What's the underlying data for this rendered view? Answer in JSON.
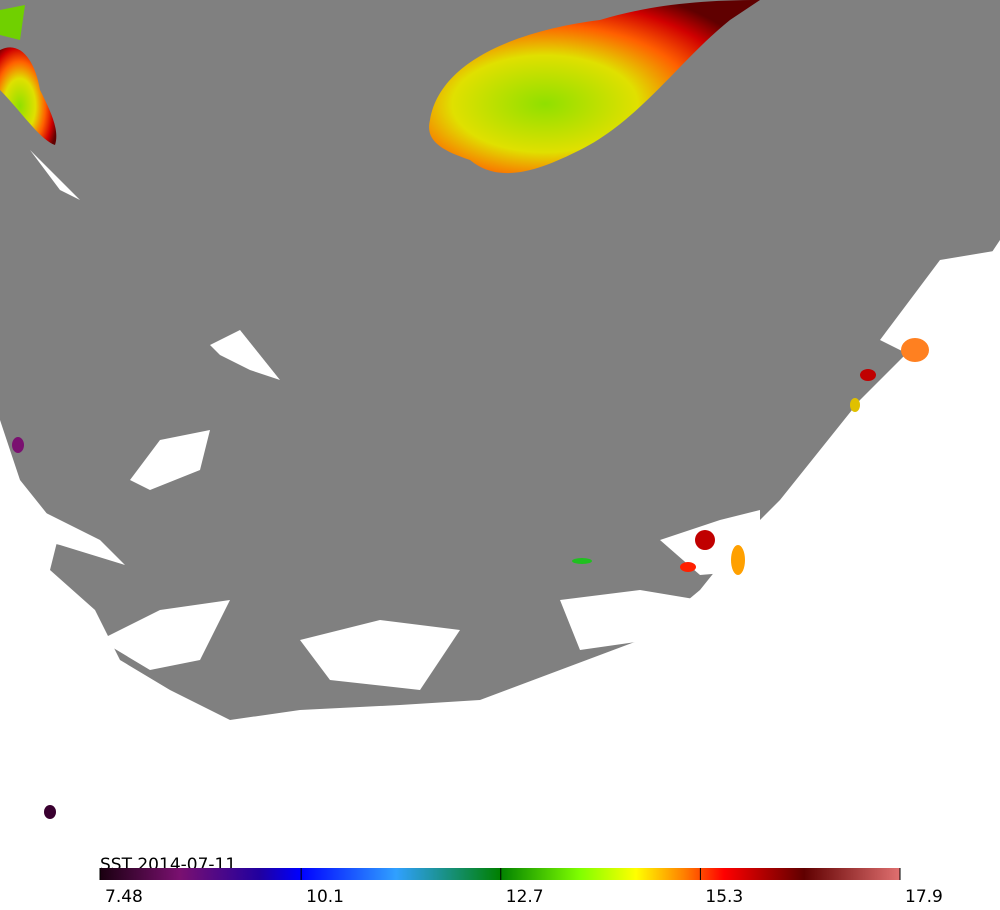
{
  "title": "SST  2014-07-11",
  "colorbar": {
    "lim": [
      7.48,
      17.9
    ],
    "ticks": [
      7.48,
      10.1,
      12.7,
      15.3,
      17.9
    ]
  }
}
